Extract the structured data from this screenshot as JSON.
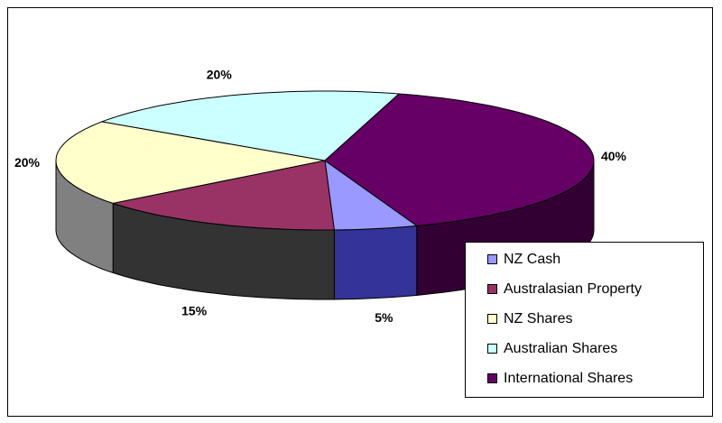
{
  "chart_data": {
    "type": "pie3d",
    "categories": [
      "NZ Cash",
      "Australasian Property",
      "NZ Shares",
      "Australian Shares",
      "International Shares"
    ],
    "values": [
      5,
      15,
      20,
      20,
      40
    ],
    "value_labels": [
      "5%",
      "15%",
      "20%",
      "20%",
      "40%"
    ],
    "colors": [
      "#9999ff",
      "#993366",
      "#ffffcc",
      "#ccffff",
      "#660066"
    ],
    "side_colors": [
      "#333399",
      "#333333",
      "#808080",
      "#66cccc",
      "#330033"
    ],
    "legend": "bottom-right"
  }
}
